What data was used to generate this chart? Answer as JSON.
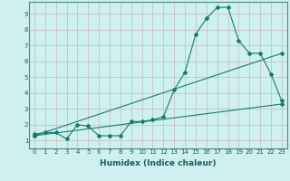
{
  "bg_color": "#cff0f0",
  "grid_color": "#c8b8b8",
  "line_color": "#1a7a6e",
  "xlabel": "Humidex (Indice chaleur)",
  "xlim": [
    -0.5,
    23.5
  ],
  "ylim": [
    0.5,
    9.75
  ],
  "xticks": [
    0,
    1,
    2,
    3,
    4,
    5,
    6,
    7,
    8,
    9,
    10,
    11,
    12,
    13,
    14,
    15,
    16,
    17,
    18,
    19,
    20,
    21,
    22,
    23
  ],
  "yticks": [
    1,
    2,
    3,
    4,
    5,
    6,
    7,
    8,
    9
  ],
  "series1_x": [
    0,
    1,
    2,
    3,
    4,
    5,
    6,
    7,
    8,
    9,
    10,
    11,
    12,
    13,
    14,
    15,
    16,
    17,
    18,
    19,
    20,
    21,
    22,
    23
  ],
  "series1_y": [
    1.4,
    1.5,
    1.5,
    1.1,
    2.0,
    1.9,
    1.3,
    1.3,
    1.3,
    2.2,
    2.2,
    2.3,
    2.5,
    4.2,
    5.3,
    7.7,
    8.7,
    9.4,
    9.4,
    7.3,
    6.5,
    6.5,
    5.2,
    3.5
  ],
  "series2_x": [
    0,
    23
  ],
  "series2_y": [
    1.3,
    6.5
  ],
  "series3_x": [
    0,
    23
  ],
  "series3_y": [
    1.3,
    3.3
  ],
  "tick_fontsize": 5.0,
  "xlabel_fontsize": 6.5,
  "marker_size": 2.0,
  "linewidth": 0.8
}
